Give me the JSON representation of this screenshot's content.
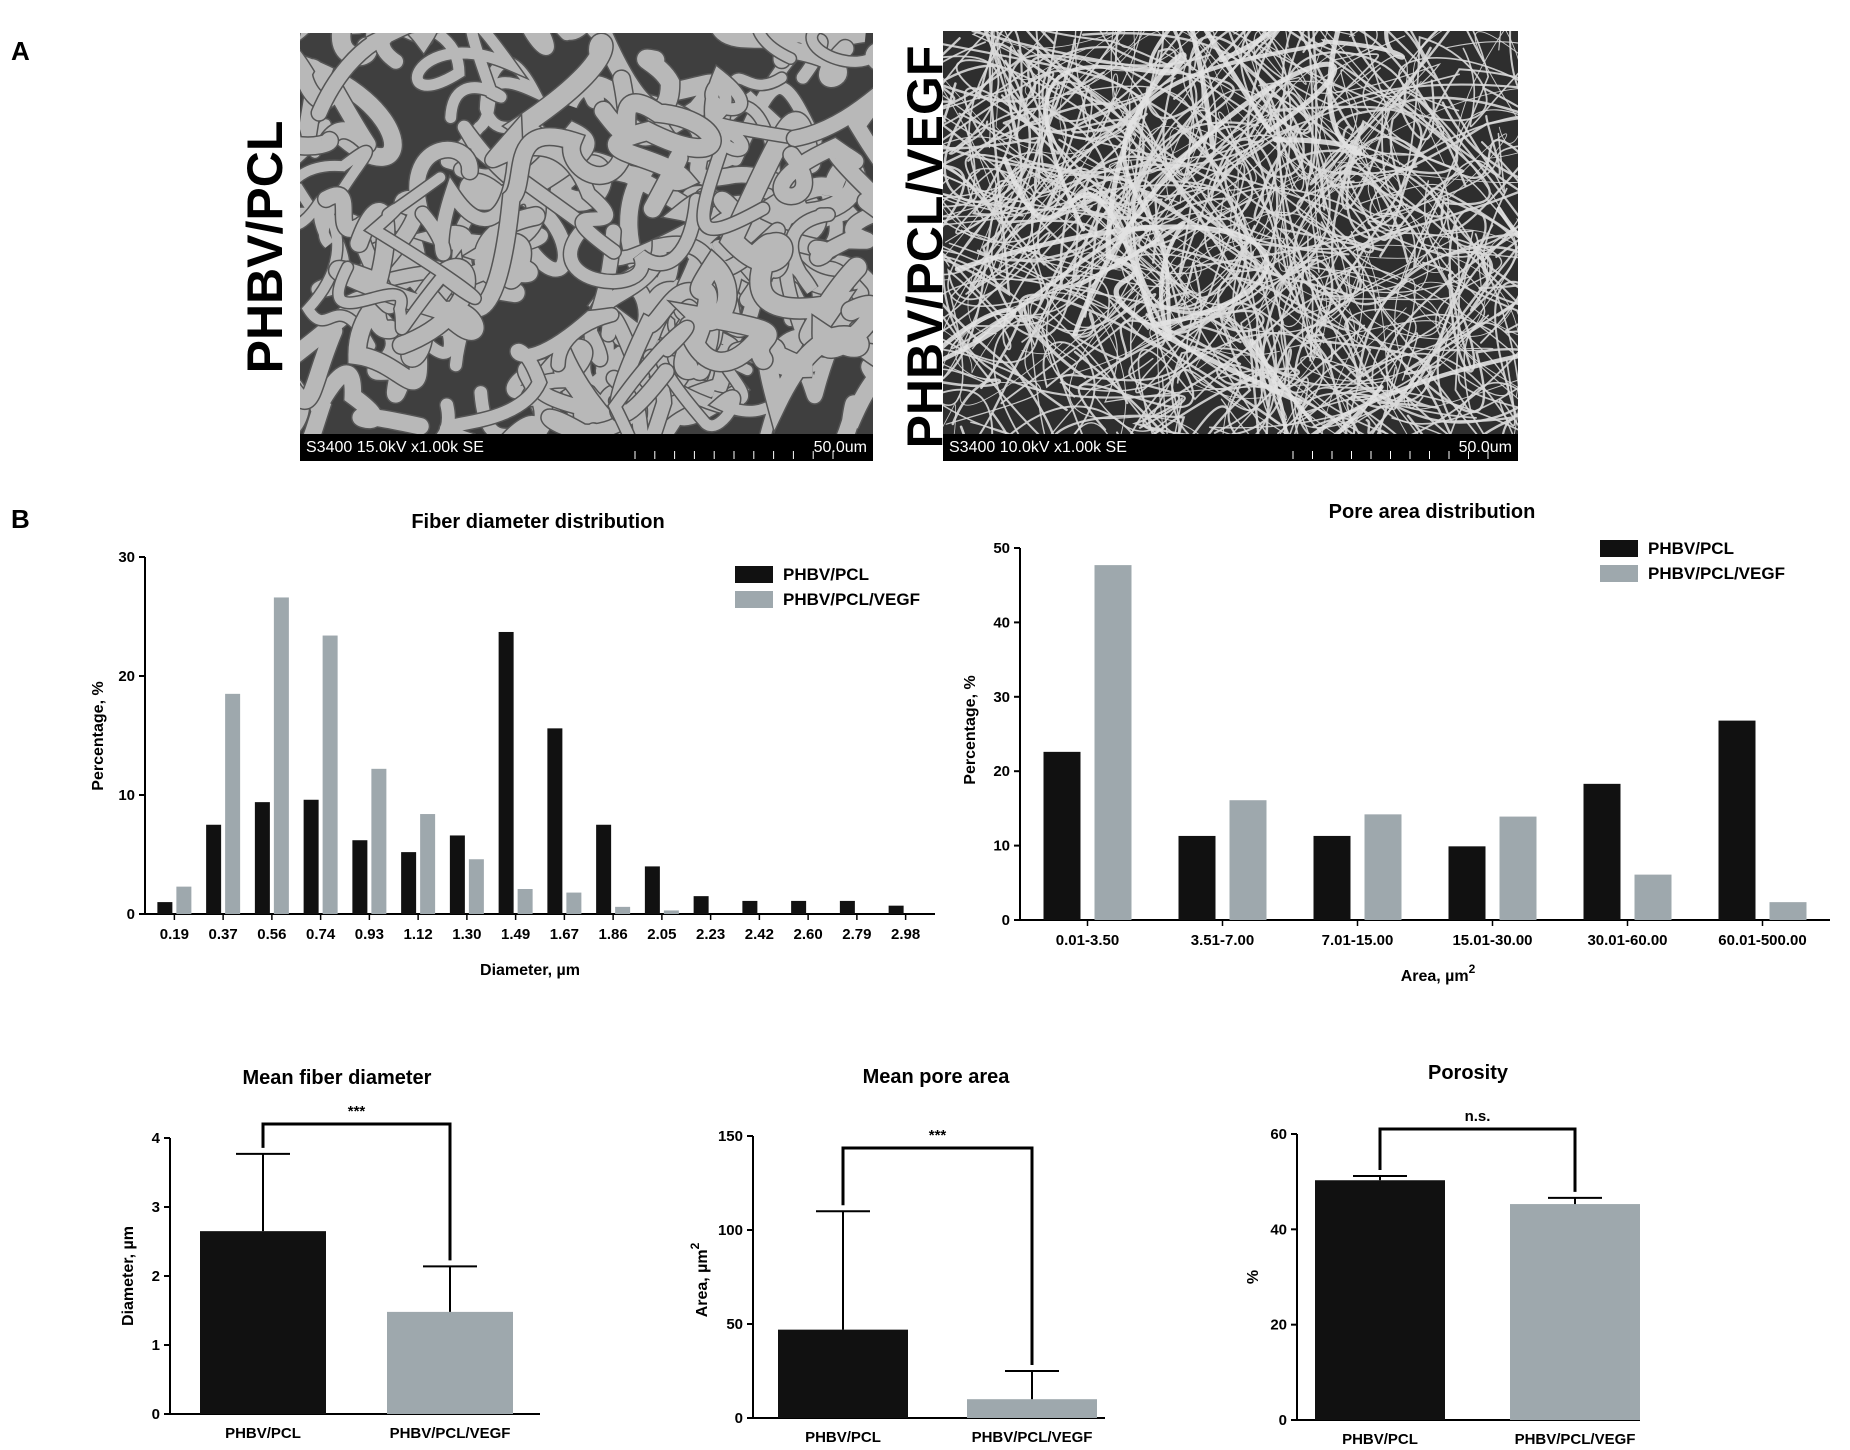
{
  "panels": {
    "a_letter": "A",
    "b_letter": "B"
  },
  "sem": [
    {
      "label": "PHBV/PCL",
      "info": "S3400 15.0kV x1.00k SE",
      "scale": "50.0um"
    },
    {
      "label": "PHBV/PCL/VEGF",
      "info": "S3400 10.0kV x1.00k SE",
      "scale": "50.0um"
    }
  ],
  "colors": {
    "phbv_pcl": "#111111",
    "phbv_pcl_vegf": "#9ea8ad"
  },
  "chart_data": [
    {
      "id": "fiber",
      "type": "bar",
      "title": "Fiber diameter distribution",
      "xlabel": "Diameter, µm",
      "ylabel": "Percentage, %",
      "ylim": [
        0,
        30
      ],
      "yticks": [
        0,
        10,
        20,
        30
      ],
      "legend": "top-right",
      "categories": [
        "0.19",
        "0.37",
        "0.56",
        "0.74",
        "0.93",
        "1.12",
        "1.30",
        "1.49",
        "1.67",
        "1.86",
        "2.05",
        "2.23",
        "2.42",
        "2.60",
        "2.79",
        "2.98"
      ],
      "series": [
        {
          "name": "PHBV/PCL",
          "color": "#111111",
          "values": [
            1.0,
            7.5,
            9.4,
            9.6,
            6.2,
            5.2,
            6.6,
            23.7,
            15.6,
            7.5,
            4.0,
            1.5,
            1.1,
            1.1,
            1.1,
            0.7
          ]
        },
        {
          "name": "PHBV/PCL/VEGF",
          "color": "#9ea8ad",
          "values": [
            2.3,
            18.5,
            26.6,
            23.4,
            12.2,
            8.4,
            4.6,
            2.1,
            1.8,
            0.6,
            0.3,
            0,
            0,
            0,
            0,
            0
          ]
        }
      ]
    },
    {
      "id": "pore",
      "type": "bar",
      "title": "Pore area distribution",
      "xlabel": "Area, µm",
      "xlabel_sup": "2",
      "ylabel": "Percentage, %",
      "ylim": [
        0,
        50
      ],
      "yticks": [
        0,
        10,
        20,
        30,
        40,
        50
      ],
      "legend": "top-right",
      "categories": [
        "0.01-3.50",
        "3.51-7.00",
        "7.01-15.00",
        "15.01-30.00",
        "30.01-60.00",
        "60.01-500.00"
      ],
      "series": [
        {
          "name": "PHBV/PCL",
          "color": "#111111",
          "values": [
            22.6,
            11.3,
            11.3,
            9.9,
            18.3,
            26.8
          ]
        },
        {
          "name": "PHBV/PCL/VEGF",
          "color": "#9ea8ad",
          "values": [
            47.7,
            16.1,
            14.2,
            13.9,
            6.1,
            2.4
          ]
        }
      ]
    },
    {
      "id": "meanfiber",
      "type": "bar",
      "title": "Mean fiber diameter",
      "ylabel": "Diameter, µm",
      "ylim": [
        0,
        4
      ],
      "yticks": [
        0,
        1,
        2,
        3,
        4
      ],
      "categories": [
        "PHBV/PCL",
        "PHBV/PCL/VEGF"
      ],
      "values": [
        2.65,
        1.48
      ],
      "errors": [
        1.12,
        0.66
      ],
      "colors": [
        "#111111",
        "#9ea8ad"
      ],
      "significance": "***"
    },
    {
      "id": "meanpore",
      "type": "bar",
      "title": "Mean pore area",
      "ylabel": "Area, µm",
      "ylabel_sup": "2",
      "ylim": [
        0,
        150
      ],
      "yticks": [
        0,
        50,
        100,
        150
      ],
      "categories": [
        "PHBV/PCL",
        "PHBV/PCL/VEGF"
      ],
      "values": [
        47,
        10
      ],
      "errors": [
        63,
        15
      ],
      "colors": [
        "#111111",
        "#9ea8ad"
      ],
      "significance": "***"
    },
    {
      "id": "porosity",
      "type": "bar",
      "title": "Porosity",
      "ylabel": "%",
      "ylim": [
        0,
        60
      ],
      "yticks": [
        0,
        20,
        40,
        60
      ],
      "categories": [
        "PHBV/PCL",
        "PHBV/PCL/VEGF"
      ],
      "values": [
        50.3,
        45.3
      ],
      "errors": [
        0.9,
        1.3
      ],
      "colors": [
        "#111111",
        "#9ea8ad"
      ],
      "significance": "n.s."
    }
  ]
}
